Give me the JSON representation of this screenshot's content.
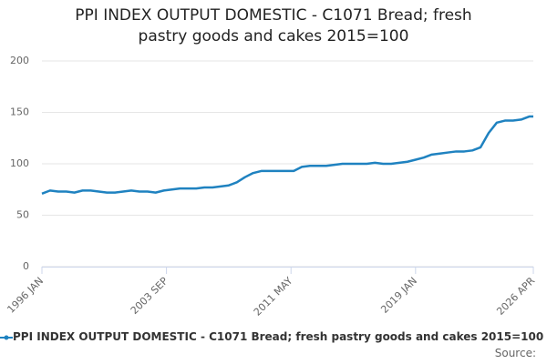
{
  "chart_data": {
    "type": "line",
    "title": "PPI INDEX OUTPUT DOMESTIC - C1071 Bread; fresh pastry goods and cakes 2015=100",
    "source": "Source:",
    "x": [
      1996,
      1996.5,
      1997,
      1997.5,
      1998,
      1998.5,
      1999,
      1999.5,
      2000,
      2000.5,
      2001,
      2001.5,
      2002,
      2002.5,
      2003,
      2003.5,
      2004,
      2004.5,
      2005,
      2005.5,
      2006,
      2006.5,
      2007,
      2007.5,
      2008,
      2008.5,
      2009,
      2009.5,
      2010,
      2010.5,
      2011,
      2011.5,
      2012,
      2012.5,
      2013,
      2013.5,
      2014,
      2014.5,
      2015,
      2015.5,
      2016,
      2016.5,
      2017,
      2017.5,
      2018,
      2018.5,
      2019,
      2019.5,
      2020,
      2020.5,
      2021,
      2021.5,
      2022,
      2022.5,
      2023,
      2023.5,
      2024,
      2024.5,
      2025,
      2025.5,
      2026,
      2026.25
    ],
    "series": [
      {
        "name": "PPI INDEX OUTPUT DOMESTIC - C1071 Bread; fresh pastry goods and cakes 2015=100",
        "color": "#1f82c0",
        "values": [
          71,
          74,
          73,
          73,
          72,
          74,
          74,
          73,
          72,
          72,
          73,
          74,
          73,
          73,
          72,
          74,
          75,
          76,
          76,
          76,
          77,
          77,
          78,
          79,
          82,
          87,
          91,
          93,
          93,
          93,
          93,
          93,
          97,
          98,
          98,
          98,
          99,
          100,
          100,
          100,
          100,
          101,
          100,
          100,
          101,
          102,
          104,
          106,
          109,
          110,
          111,
          112,
          112,
          113,
          116,
          130,
          140,
          142,
          142,
          143,
          146,
          146
        ]
      }
    ],
    "xlim": [
      1996,
      2026.25
    ],
    "xticks": [
      {
        "value": 1996,
        "label": "1996 JAN"
      },
      {
        "value": 2003.667,
        "label": "2003 SEP"
      },
      {
        "value": 2011.333,
        "label": "2011 MAY"
      },
      {
        "value": 2019,
        "label": "2019 JAN"
      },
      {
        "value": 2026.25,
        "label": "2026 APR"
      }
    ],
    "ylim": [
      0,
      200
    ],
    "yticks": [
      0,
      50,
      100,
      150,
      200
    ],
    "grid": true
  }
}
